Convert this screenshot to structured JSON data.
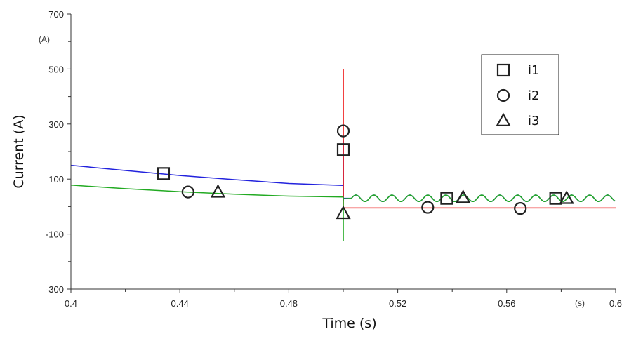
{
  "chart_data": {
    "type": "line",
    "title": "",
    "xlabel": "Time (s)",
    "ylabel": "Current (A)",
    "x_unit": "(s)",
    "y_unit": "(A)",
    "xlim": [
      0.4,
      0.6
    ],
    "ylim": [
      -300,
      700
    ],
    "xticks": [
      0.4,
      0.44,
      0.48,
      0.52,
      0.56,
      0.6
    ],
    "xtick_labels": [
      "0.4",
      "0.44",
      "0.48",
      "0.52",
      "0.56",
      "0.6"
    ],
    "yticks": [
      -300,
      -100,
      100,
      300,
      500,
      700
    ],
    "ytick_labels": [
      "-300",
      "-100",
      "100",
      "300",
      "500",
      "700"
    ],
    "grid": false,
    "legend_position": "top-right",
    "series": [
      {
        "name": "i1",
        "color": "#2222dd",
        "marker": "square",
        "points": [
          [
            0.4,
            150
          ],
          [
            0.42,
            131
          ],
          [
            0.44,
            113
          ],
          [
            0.46,
            98
          ],
          [
            0.48,
            84
          ],
          [
            0.4999,
            77
          ],
          [
            0.5,
            205
          ],
          [
            0.5001,
            30
          ],
          [
            0.505,
            28
          ],
          [
            0.6,
            30
          ]
        ],
        "spike": {
          "x": 0.5,
          "ymin": 20,
          "ymax": 240
        },
        "ripple_amplitude": 12,
        "markers": [
          [
            0.434,
            120
          ],
          [
            0.5,
            207
          ],
          [
            0.538,
            30
          ],
          [
            0.578,
            30
          ]
        ]
      },
      {
        "name": "i2",
        "color": "#ee1111",
        "marker": "circle",
        "points": [
          [
            0.5,
            -5
          ],
          [
            0.6,
            -5
          ]
        ],
        "spike": {
          "x": 0.5,
          "ymin": -5,
          "ymax": 500
        },
        "ripple_amplitude": 0,
        "markers": [
          [
            0.5,
            275
          ],
          [
            0.443,
            53
          ],
          [
            0.531,
            -3
          ],
          [
            0.565,
            -7
          ]
        ]
      },
      {
        "name": "i3",
        "color": "#22aa22",
        "marker": "triangle",
        "points": [
          [
            0.4,
            78
          ],
          [
            0.42,
            65
          ],
          [
            0.44,
            54
          ],
          [
            0.46,
            45
          ],
          [
            0.48,
            38
          ],
          [
            0.4999,
            35
          ],
          [
            0.5,
            35
          ],
          [
            0.505,
            28
          ],
          [
            0.6,
            30
          ]
        ],
        "spike": {
          "x": 0.5,
          "ymin": -125,
          "ymax": 35
        },
        "ripple_amplitude": 12,
        "markers": [
          [
            0.454,
            53
          ],
          [
            0.5,
            -25
          ],
          [
            0.544,
            33
          ],
          [
            0.582,
            30
          ]
        ]
      }
    ]
  }
}
